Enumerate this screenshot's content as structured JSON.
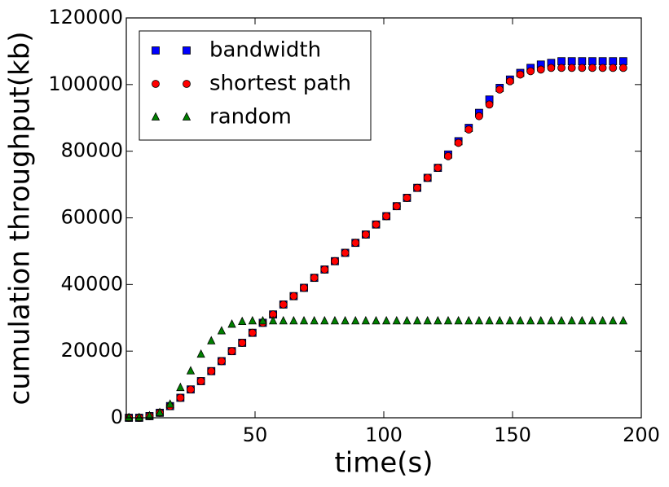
{
  "chart_data": {
    "type": "scatter",
    "xlabel": "time(s)",
    "ylabel": "cumulation throughput(kb)",
    "x": [
      1,
      5,
      9,
      13,
      17,
      21,
      25,
      29,
      33,
      37,
      41,
      45,
      49,
      53,
      57,
      61,
      65,
      69,
      73,
      77,
      81,
      85,
      89,
      93,
      97,
      101,
      105,
      109,
      113,
      117,
      121,
      125,
      129,
      133,
      137,
      141,
      145,
      149,
      153,
      157,
      161,
      165,
      169,
      173,
      177,
      181,
      185,
      189,
      193
    ],
    "series": [
      {
        "name": "bandwidth",
        "color": "#0000ff",
        "marker": "square",
        "values": [
          0,
          0,
          500,
          1500,
          3500,
          6000,
          8500,
          11000,
          14000,
          17000,
          20000,
          22500,
          25500,
          28500,
          31000,
          34000,
          36500,
          39000,
          42000,
          44500,
          47000,
          49500,
          52500,
          55000,
          58000,
          60500,
          63500,
          66000,
          69000,
          72000,
          75000,
          79000,
          83000,
          87000,
          91500,
          95500,
          99000,
          101500,
          103500,
          105000,
          106000,
          106500,
          107000,
          107000,
          107000,
          107000,
          107000,
          107000,
          107000
        ]
      },
      {
        "name": "shortest path",
        "color": "#ff0000",
        "marker": "circle",
        "values": [
          0,
          0,
          500,
          1500,
          3500,
          6000,
          8500,
          11000,
          14000,
          17000,
          20000,
          22500,
          25500,
          28500,
          31000,
          34000,
          36500,
          39000,
          42000,
          44500,
          47000,
          49500,
          52500,
          55000,
          58000,
          60500,
          63500,
          66000,
          69000,
          72000,
          75000,
          78500,
          82500,
          86500,
          90500,
          94000,
          98500,
          101000,
          103000,
          104000,
          104500,
          105000,
          105000,
          105000,
          105000,
          105000,
          105000,
          105000,
          105000
        ]
      },
      {
        "name": "random",
        "color": "#008000",
        "marker": "triangle",
        "values": [
          0,
          0,
          500,
          1500,
          4000,
          9000,
          14000,
          19000,
          23000,
          26000,
          28000,
          28800,
          29000,
          29000,
          29000,
          29000,
          29000,
          29000,
          29000,
          29000,
          29000,
          29000,
          29000,
          29000,
          29000,
          29000,
          29000,
          29000,
          29000,
          29000,
          29000,
          29000,
          29000,
          29000,
          29000,
          29000,
          29000,
          29000,
          29000,
          29000,
          29000,
          29000,
          29000,
          29000,
          29000,
          29000,
          29000,
          29000,
          29000
        ]
      }
    ],
    "xlim": [
      0,
      200
    ],
    "xticks": [
      50,
      100,
      150,
      200
    ],
    "ylim": [
      0,
      120000
    ],
    "yticks": [
      0,
      20000,
      40000,
      60000,
      80000,
      100000,
      120000
    ],
    "legend": "upper left"
  }
}
